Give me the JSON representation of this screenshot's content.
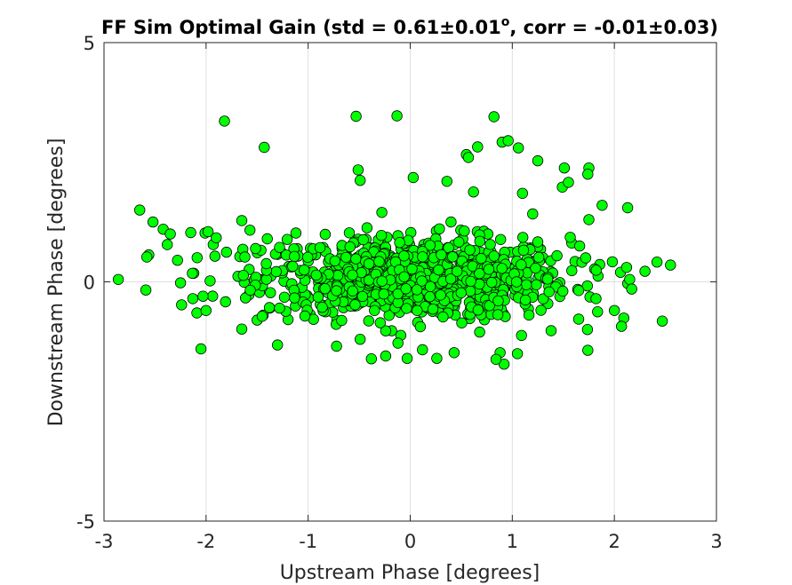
{
  "chart_data": {
    "type": "scatter",
    "title": {
      "prefix": "FF Sim Optimal Gain (std = 0.61±0.01",
      "superscript": "o",
      "suffix": ", corr = -0.01±0.03)"
    },
    "xlabel": "Upstream Phase [degrees]",
    "ylabel": "Downstream Phase [degrees]",
    "xlim": [
      -3,
      3
    ],
    "ylim": [
      -5,
      5
    ],
    "x_ticks": [
      -3,
      -2,
      -1,
      0,
      1,
      2,
      3
    ],
    "x_tick_labels": [
      "-3",
      "-2",
      "-1",
      "0",
      "1",
      "2",
      "3"
    ],
    "y_ticks": [
      -5,
      0,
      5
    ],
    "y_tick_labels": [
      "-5",
      "0",
      "5"
    ],
    "grid": true,
    "marker_color": "#00ff00",
    "marker_edge_color": "#000000",
    "point_count": 1000,
    "series": [
      {
        "x": [
          -2.86,
          -2.65,
          -2.58,
          -2.59,
          -2.52,
          -2.42,
          -2.38,
          -2.35,
          -2.28,
          -2.25,
          -2.24,
          -2.15,
          -2.13,
          -2.09,
          -2.05,
          -2.03,
          -2.01,
          -2.0,
          -1.98,
          -1.96,
          -1.93,
          -1.9,
          -1.82,
          -1.8,
          -1.65,
          -1.64,
          -1.62,
          -1.57,
          -1.5,
          -1.45,
          -1.43,
          -1.41,
          -1.4,
          -1.32,
          -1.3,
          -1.28,
          -1.12,
          -0.53,
          -0.51,
          -0.49,
          -0.13,
          0.03,
          0.36,
          0.4,
          0.55,
          0.57,
          0.62,
          0.66,
          0.82,
          0.9,
          0.96,
          1.06,
          1.1,
          1.2,
          1.25,
          1.51,
          1.49,
          1.55,
          1.75,
          1.74,
          1.88,
          1.98,
          2.06,
          2.12,
          2.15,
          2.17,
          2.3,
          2.55,
          2.47,
          2.13,
          2.07,
          2.0,
          1.75,
          1.74,
          1.66,
          1.05,
          0.92,
          0.88,
          0.84,
          0.43,
          0.26,
          0.12,
          -0.03,
          -0.12,
          -0.24,
          -0.49,
          -1.28,
          -0.35,
          0.68,
          1.09,
          1.38,
          1.65,
          1.82
        ],
        "y": [
          0.05,
          1.5,
          0.52,
          -0.17,
          1.25,
          1.1,
          0.78,
          1.0,
          0.45,
          -0.02,
          -0.48,
          1.03,
          -0.35,
          -0.65,
          -1.4,
          -0.3,
          1.02,
          -0.6,
          1.05,
          0.02,
          0.78,
          0.92,
          3.36,
          0.62,
          1.28,
          0.68,
          0.52,
          1.08,
          -0.8,
          -0.72,
          2.81,
          0.38,
          0.9,
          0.58,
          -1.32,
          0.72,
          1.02,
          3.46,
          2.34,
          2.12,
          3.47,
          2.18,
          2.1,
          1.25,
          2.66,
          2.6,
          1.88,
          2.82,
          3.45,
          2.92,
          2.95,
          2.8,
          1.85,
          1.42,
          2.53,
          2.38,
          1.98,
          2.08,
          2.38,
          2.25,
          1.6,
          0.42,
          0.2,
          0.3,
          0.05,
          -0.15,
          0.22,
          0.35,
          -0.82,
          1.55,
          -0.93,
          -0.6,
          1.3,
          -1.43,
          0.75,
          -1.5,
          -1.72,
          -1.48,
          -1.62,
          -1.48,
          -1.6,
          -1.42,
          -1.6,
          -1.28,
          -1.55,
          -1.2,
          -0.55,
          -0.6,
          -1.05,
          -1.12,
          -1.02,
          -0.78,
          -0.35
        ]
      }
    ]
  }
}
